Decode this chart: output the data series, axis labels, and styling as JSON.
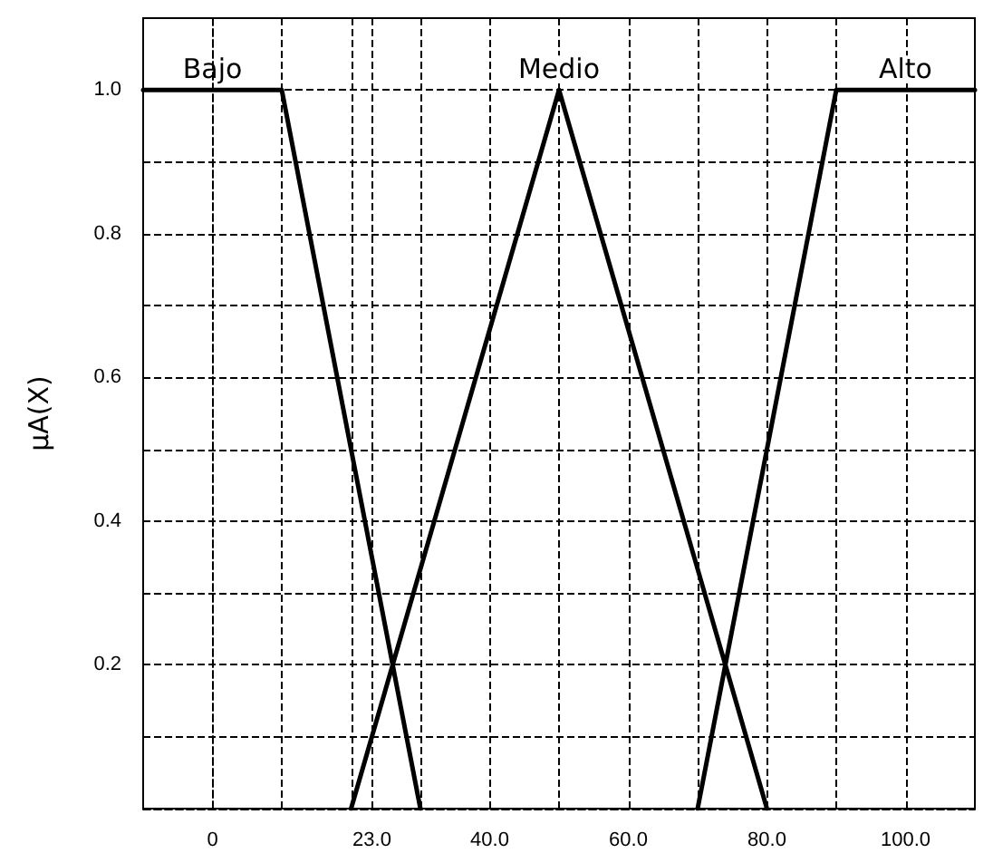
{
  "chart_data": {
    "type": "line",
    "ylabel": "μA(X)",
    "xlim": [
      -10,
      110
    ],
    "ylim": [
      0,
      1.1
    ],
    "xticks": [
      0,
      {
        "value": 10,
        "label": null
      },
      {
        "value": 20,
        "label": null
      },
      {
        "value": 23,
        "label": "23.0"
      },
      {
        "value": 30,
        "label": null
      },
      {
        "value": 40,
        "label": "40.0"
      },
      {
        "value": 50,
        "label": null
      },
      {
        "value": 60,
        "label": "60.0"
      },
      {
        "value": 70,
        "label": null
      },
      {
        "value": 80,
        "label": "80.0"
      },
      {
        "value": 90,
        "label": null
      },
      {
        "value": 100,
        "label": "100.0"
      }
    ],
    "yticks": [
      {
        "value": 0.1,
        "label": null
      },
      {
        "value": 0.2,
        "label": "0.2"
      },
      {
        "value": 0.3,
        "label": null
      },
      {
        "value": 0.4,
        "label": "0.4"
      },
      {
        "value": 0.5,
        "label": null
      },
      {
        "value": 0.6,
        "label": "0.6"
      },
      {
        "value": 0.7,
        "label": null
      },
      {
        "value": 0.8,
        "label": "0.8"
      },
      {
        "value": 0.9,
        "label": null
      },
      {
        "value": 1,
        "label": "1.0"
      }
    ],
    "series": [
      {
        "name": "Bajo",
        "color": "#000000",
        "x": [
          -10,
          10,
          30
        ],
        "values": [
          1,
          1,
          0
        ]
      },
      {
        "name": "Medio",
        "color": "#000000",
        "x": [
          20,
          50,
          80
        ],
        "values": [
          0,
          1,
          0
        ]
      },
      {
        "name": "Alto",
        "color": "#000000",
        "x": [
          70,
          90,
          110
        ],
        "values": [
          0,
          1,
          1
        ]
      }
    ],
    "grid": true,
    "legend": false,
    "marker": "none",
    "line_style": "solid"
  }
}
